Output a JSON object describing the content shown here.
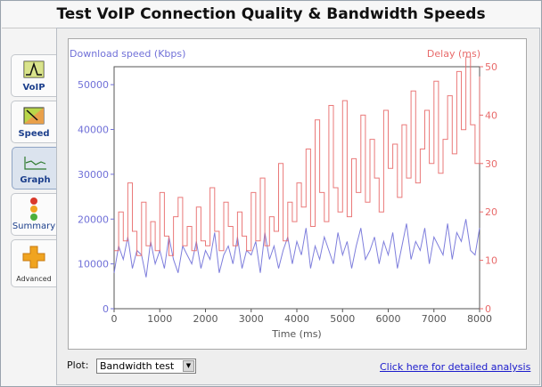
{
  "window": {
    "title": "Test VoIP Connection Quality & Bandwidth Speeds"
  },
  "tabs": [
    {
      "label": "VoIP",
      "icon": "voip-wave-icon"
    },
    {
      "label": "Speed",
      "icon": "speed-gauge-icon"
    },
    {
      "label": "Graph",
      "icon": "graph-line-icon",
      "active": true
    },
    {
      "label": "Summary",
      "icon": "traffic-light-icon"
    },
    {
      "label": "Advanced",
      "icon": "plus-cross-icon"
    }
  ],
  "footer": {
    "plot_label": "Plot:",
    "plot_value": "Bandwidth test",
    "analysis_link": "Click here for detailed analysis"
  },
  "colors": {
    "download": "#7070d8",
    "delay": "#e86a6a",
    "accent_tab": "#dbe3ee"
  },
  "chart_data": {
    "type": "line",
    "xlabel": "Time (ms)",
    "xlim": [
      0,
      8000
    ],
    "x_ticks": [
      0,
      1000,
      2000,
      3000,
      4000,
      5000,
      6000,
      7000,
      8000
    ],
    "y_left": {
      "label": "Download speed (Kbps)",
      "lim": [
        0,
        54000
      ],
      "ticks": [
        0,
        10000,
        20000,
        30000,
        40000,
        50000
      ]
    },
    "y_right": {
      "label": "Delay (ms)",
      "lim": [
        0,
        50
      ],
      "ticks": [
        0,
        10,
        20,
        30,
        40,
        50
      ]
    },
    "series": [
      {
        "name": "Download speed (Kbps)",
        "axis": "left",
        "color": "#7070d8",
        "step": false,
        "x": [
          0,
          100,
          200,
          300,
          400,
          500,
          600,
          700,
          800,
          900,
          1000,
          1100,
          1200,
          1300,
          1400,
          1500,
          1600,
          1700,
          1800,
          1900,
          2000,
          2100,
          2200,
          2300,
          2400,
          2500,
          2600,
          2700,
          2800,
          2900,
          3000,
          3100,
          3200,
          3300,
          3400,
          3500,
          3600,
          3700,
          3800,
          3900,
          4000,
          4100,
          4200,
          4300,
          4400,
          4500,
          4600,
          4700,
          4800,
          4900,
          5000,
          5100,
          5200,
          5300,
          5400,
          5500,
          5600,
          5700,
          5800,
          5900,
          6000,
          6100,
          6200,
          6300,
          6400,
          6500,
          6600,
          6700,
          6800,
          6900,
          7000,
          7100,
          7200,
          7300,
          7400,
          7500,
          7600,
          7700,
          7800,
          7900,
          8000
        ],
        "y": [
          8000,
          14000,
          11000,
          16000,
          9000,
          13000,
          12000,
          7000,
          15000,
          10000,
          13000,
          9000,
          16000,
          11000,
          8000,
          14000,
          12000,
          10000,
          15000,
          9000,
          13000,
          11000,
          17000,
          8000,
          12000,
          14000,
          10000,
          16000,
          9000,
          13000,
          12000,
          15000,
          8000,
          17000,
          11000,
          14000,
          9000,
          13000,
          16000,
          10000,
          15000,
          12000,
          18000,
          9000,
          14000,
          11000,
          16000,
          13000,
          10000,
          17000,
          12000,
          15000,
          9000,
          14000,
          18000,
          11000,
          13000,
          16000,
          10000,
          15000,
          12000,
          17000,
          9000,
          14000,
          19000,
          11000,
          15000,
          13000,
          18000,
          10000,
          16000,
          14000,
          12000,
          19000,
          11000,
          17000,
          15000,
          20000,
          13000,
          12000,
          18000
        ]
      },
      {
        "name": "Delay (ms)",
        "axis": "right",
        "color": "#e86a6a",
        "step": true,
        "x": [
          0,
          100,
          200,
          300,
          400,
          500,
          600,
          700,
          800,
          900,
          1000,
          1100,
          1200,
          1300,
          1400,
          1500,
          1600,
          1700,
          1800,
          1900,
          2000,
          2100,
          2200,
          2300,
          2400,
          2500,
          2600,
          2700,
          2800,
          2900,
          3000,
          3100,
          3200,
          3300,
          3400,
          3500,
          3600,
          3700,
          3800,
          3900,
          4000,
          4100,
          4200,
          4300,
          4400,
          4500,
          4600,
          4700,
          4800,
          4900,
          5000,
          5100,
          5200,
          5300,
          5400,
          5500,
          5600,
          5700,
          5800,
          5900,
          6000,
          6100,
          6200,
          6300,
          6400,
          6500,
          6600,
          6700,
          6800,
          6900,
          7000,
          7100,
          7200,
          7300,
          7400,
          7500,
          7600,
          7700,
          7800,
          7900,
          8000
        ],
        "y": [
          12,
          20,
          14,
          26,
          16,
          11,
          22,
          13,
          18,
          12,
          24,
          15,
          11,
          19,
          23,
          13,
          17,
          12,
          21,
          14,
          13,
          25,
          16,
          12,
          22,
          17,
          13,
          20,
          15,
          12,
          24,
          14,
          27,
          13,
          19,
          16,
          30,
          14,
          22,
          18,
          26,
          21,
          33,
          17,
          39,
          24,
          18,
          42,
          25,
          20,
          43,
          19,
          31,
          24,
          40,
          22,
          35,
          27,
          20,
          41,
          29,
          34,
          23,
          38,
          27,
          45,
          26,
          33,
          41,
          30,
          47,
          28,
          35,
          44,
          32,
          49,
          37,
          52,
          38,
          30,
          48
        ]
      }
    ]
  }
}
